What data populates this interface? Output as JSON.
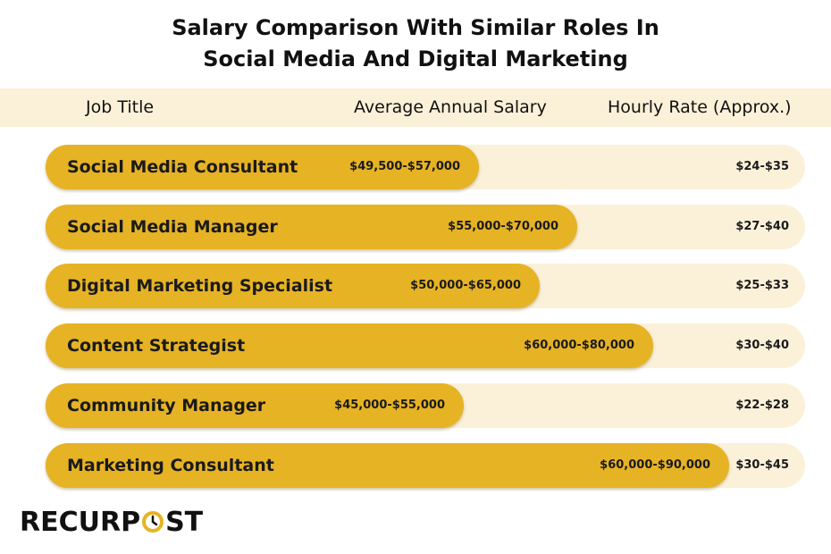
{
  "title_line1": "Salary Comparison With Similar Roles In",
  "title_line2": "Social Media And Digital Marketing",
  "headers": {
    "job": "Job Title",
    "salary": "Average Annual Salary",
    "rate": "Hourly Rate (Approx.)"
  },
  "logo": {
    "left": "RECURP",
    "right": "ST"
  },
  "colors": {
    "fill": "#e6b325",
    "track": "#fbf1d9",
    "header_bg": "#fbf1d9"
  },
  "chart_data": {
    "type": "bar",
    "orientation": "horizontal",
    "categories": [
      "Social Media Consultant",
      "Social Media Manager",
      "Digital Marketing Specialist",
      "Content Strategist",
      "Community Manager",
      "Marketing Consultant"
    ],
    "salary_labels": [
      "$49,500-$57,000",
      "$55,000-$70,000",
      "$50,000-$65,000",
      "$60,000-$80,000",
      "$45,000-$55,000",
      "$60,000-$90,000"
    ],
    "salary_ranges": [
      [
        49500,
        57000
      ],
      [
        55000,
        70000
      ],
      [
        50000,
        65000
      ],
      [
        60000,
        80000
      ],
      [
        45000,
        55000
      ],
      [
        60000,
        90000
      ]
    ],
    "hourly_rates": [
      "$24-$35",
      "$27-$40",
      "$25-$33",
      "$30-$40",
      "$22-$28",
      "$30-$45"
    ],
    "value_scale_max": 100000
  }
}
